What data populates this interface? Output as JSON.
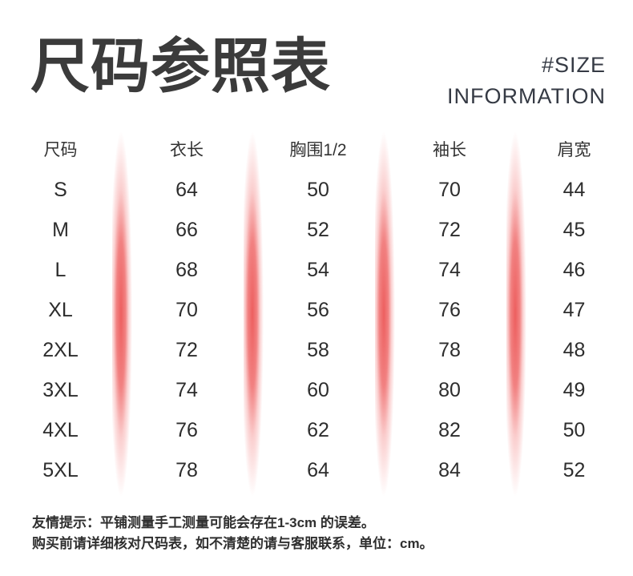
{
  "header": {
    "title": "尺码参照表",
    "eyebrow_line1": "#SIZE",
    "eyebrow_line2": "INFORMATION"
  },
  "table": {
    "columns": [
      "尺码",
      "衣长",
      "胸围1/2",
      "袖长",
      "肩宽"
    ],
    "rows": [
      {
        "size": "S",
        "values": [
          "64",
          "50",
          "70",
          "44"
        ]
      },
      {
        "size": "M",
        "values": [
          "66",
          "52",
          "72",
          "45"
        ]
      },
      {
        "size": "L",
        "values": [
          "68",
          "54",
          "74",
          "46"
        ]
      },
      {
        "size": "XL",
        "values": [
          "70",
          "56",
          "76",
          "47"
        ]
      },
      {
        "size": "2XL",
        "values": [
          "72",
          "58",
          "78",
          "48"
        ]
      },
      {
        "size": "3XL",
        "values": [
          "74",
          "60",
          "80",
          "49"
        ]
      },
      {
        "size": "4XL",
        "values": [
          "76",
          "62",
          "82",
          "50"
        ]
      },
      {
        "size": "5XL",
        "values": [
          "78",
          "64",
          "84",
          "52"
        ]
      }
    ]
  },
  "footer": {
    "line1": "友情提示：平铺测量手工测量可能会存在1-3cm 的误差。",
    "line2": "购买前请详细核对尺码表，如不清楚的请与客服联系，单位：cm。"
  },
  "colors": {
    "divider_pink": "#ec5656",
    "title_gray": "#3b3b3b",
    "text_dark": "#2d2d2d"
  }
}
